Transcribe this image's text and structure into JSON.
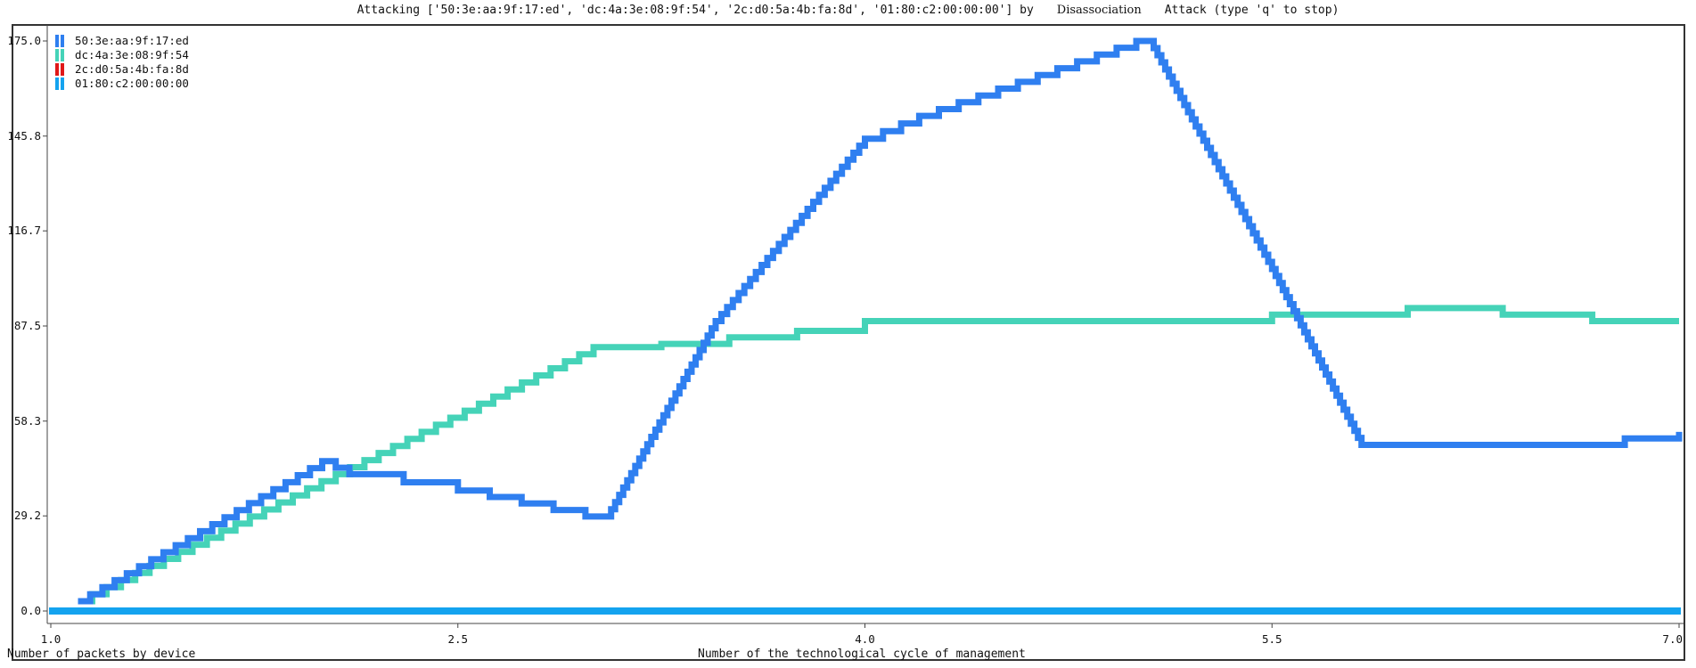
{
  "title": {
    "prefix": "Attacking ['50:3e:aa:9f:17:ed', 'dc:4a:3e:08:9f:54', '2c:d0:5a:4b:fa:8d', '01:80:c2:00:00:00'] by",
    "attack_name": "Disassociation",
    "suffix": "Attack (type 'q' to stop)"
  },
  "ylabel_text": "Number of packets by device",
  "xlabel_text": "Number of the technological cycle of management",
  "colors": {
    "s1": "#2f7ff0",
    "s2": "#45d3b8",
    "s3": "#e01818",
    "s4": "#14a3ef",
    "frame": "#333333"
  },
  "chart_data": {
    "type": "line",
    "title": "",
    "xlabel": "Number of the technological cycle of management",
    "ylabel": "Number of packets by device",
    "xlim": [
      1.0,
      7.0
    ],
    "ylim": [
      0.0,
      175.0
    ],
    "x_ticks": [
      "1.0",
      "2.5",
      "4.0",
      "5.5",
      "7.0"
    ],
    "y_ticks": [
      "175.0",
      "145.8",
      "116.7",
      "87.5",
      "58.3",
      "29.2",
      "0.0"
    ],
    "legend_position": "top-left",
    "series": [
      {
        "name": "50:3e:aa:9f:17:ed",
        "x": [
          1.1,
          2.0,
          2.1,
          2.5,
          2.97,
          3.05,
          3.45,
          4.0,
          4.2,
          5.0,
          5.05,
          5.5,
          5.83,
          6.33,
          6.8,
          7.0
        ],
        "y": [
          3,
          46,
          42,
          37,
          29,
          29,
          89,
          145,
          152,
          175,
          175,
          105,
          51,
          51,
          53,
          55
        ]
      },
      {
        "name": "dc:4a:3e:08:9f:54",
        "x": [
          1.1,
          3.0,
          3.25,
          3.5,
          3.75,
          4.0,
          5.0,
          5.5,
          6.0,
          6.35,
          6.68,
          7.0
        ],
        "y": [
          3,
          81,
          82,
          84,
          86,
          89,
          89,
          91,
          93,
          91,
          89,
          89
        ]
      },
      {
        "name": "2c:d0:5a:4b:fa:8d",
        "x": [
          1.0,
          7.0
        ],
        "y": [
          0,
          0
        ]
      },
      {
        "name": "01:80:c2:00:00:00",
        "x": [
          1.0,
          7.0
        ],
        "y": [
          0,
          0
        ]
      }
    ]
  }
}
